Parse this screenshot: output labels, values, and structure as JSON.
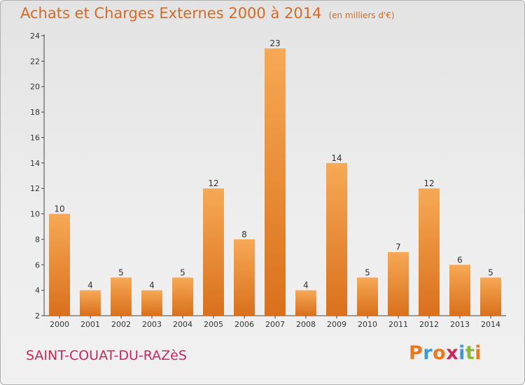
{
  "header": {
    "title": "Achats et Charges Externes 2000 à 2014",
    "subtitle": "(en milliers d'€)"
  },
  "footer": {
    "town": "SAINT-COUAT-DU-RAZèS",
    "logo_text": "Proxiti",
    "logo_colors": [
      "#e8791e",
      "#3a9bd6",
      "#e8791e",
      "#c8285a",
      "#3a9bd6",
      "#8ab83a",
      "#e8791e"
    ]
  },
  "colors": {
    "bar_top": "#f7a955",
    "bar_bottom": "#d9701c",
    "title": "#d76a22",
    "town": "#c8285a"
  },
  "chart_data": {
    "type": "bar",
    "title": "Achats et Charges Externes 2000 à 2014",
    "subtitle": "(en milliers d'€)",
    "categories": [
      "2000",
      "2001",
      "2002",
      "2003",
      "2004",
      "2005",
      "2006",
      "2007",
      "2008",
      "2009",
      "2010",
      "2011",
      "2012",
      "2013",
      "2014"
    ],
    "values": [
      10,
      4,
      5,
      4,
      5,
      12,
      8,
      23,
      4,
      14,
      5,
      7,
      12,
      6,
      5
    ],
    "ylim": [
      2,
      24
    ],
    "yticks": [
      2,
      4,
      6,
      8,
      10,
      12,
      14,
      16,
      18,
      20,
      22,
      24
    ],
    "grid": false,
    "legend": "none"
  }
}
